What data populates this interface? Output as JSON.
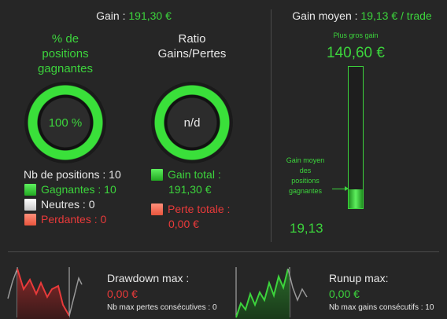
{
  "header": {
    "gain_label": "Gain : ",
    "gain_value": "191,30 €",
    "gain_moyen_label": "Gain moyen : ",
    "gain_moyen_value": "19,13 € / trade"
  },
  "win_rate": {
    "title_line1": "% de",
    "title_line2": "positions",
    "title_line3": "gagnantes",
    "value": "100 %",
    "fraction": 1.0
  },
  "ratio": {
    "title_line1": "Ratio",
    "title_line2": "Gains/Pertes",
    "value": "n/d"
  },
  "positions": {
    "nb_label": "Nb de positions : 10",
    "gagnantes": "Gagnantes : 10",
    "neutres": "Neutres : 0",
    "perdantes": "Perdantes : 0"
  },
  "totals": {
    "gain_total_label": "Gain total :",
    "gain_total_value": "191,30 €",
    "perte_totale_label": "Perte totale :",
    "perte_totale_value": "0,00 €"
  },
  "gauge": {
    "max_label": "Plus gros gain",
    "max_value": "140,60 €",
    "avg_label_line1": "Gain moyen",
    "avg_label_line2": "des",
    "avg_label_line3": "positions",
    "avg_label_line4": "gagnantes",
    "avg_value": "19,13",
    "avg_fraction": 0.136
  },
  "drawdown": {
    "title": "Drawdown max :",
    "value": "0,00 €",
    "sub": "Nb max pertes consécutives : 0"
  },
  "runup": {
    "title": "Runup max:",
    "value": "0,00 €",
    "sub": "Nb max gains consécutifs : 10"
  },
  "colors": {
    "green": "#3cd43c",
    "red": "#e83a3a",
    "background": "#262626"
  }
}
